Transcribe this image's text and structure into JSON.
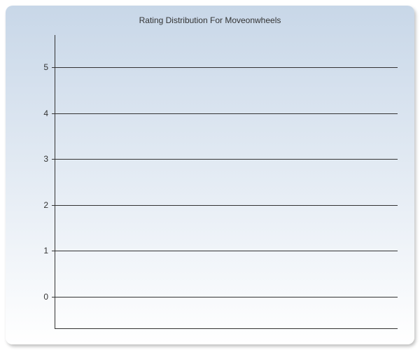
{
  "chart": {
    "type": "bar",
    "title": "Rating Distribution For Moveonwheels",
    "title_fontsize": 12,
    "title_color": "#333333",
    "background_gradient_top": "#c8d7e8",
    "background_gradient_bottom": "#ffffff",
    "border_radius": 10,
    "y_axis": {
      "ticks": [
        0,
        1,
        2,
        3,
        4,
        5
      ],
      "min": -0.7,
      "max": 5.7,
      "label_fontsize": 12,
      "label_color": "#333333"
    },
    "gridline_color": "#333333",
    "axis_color": "#333333",
    "categories": [],
    "values": []
  }
}
